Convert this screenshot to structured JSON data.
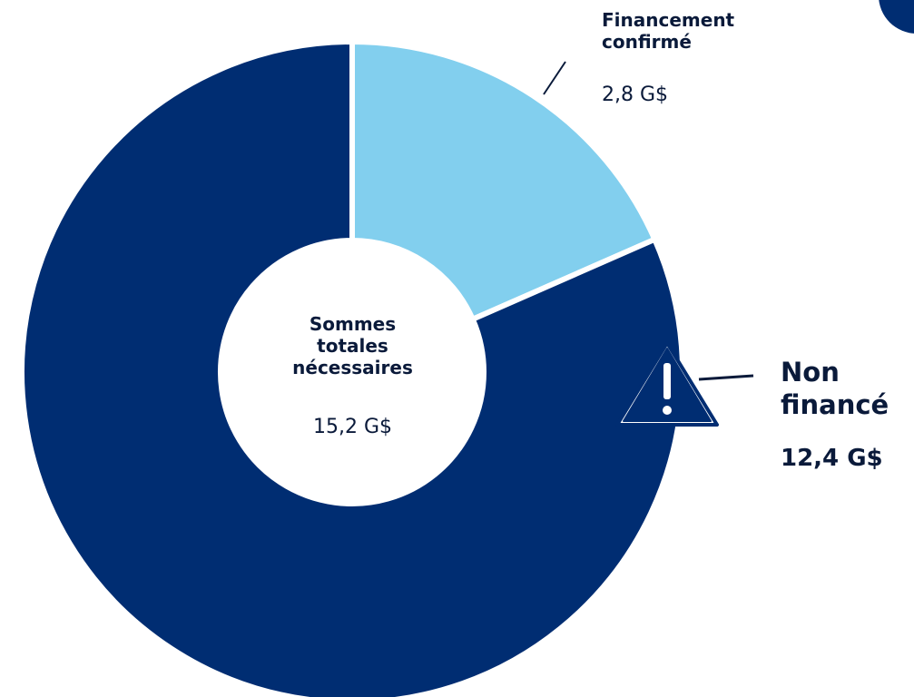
{
  "chart_data": {
    "type": "donut",
    "categories": [
      "Financement confirmé",
      "Non financé"
    ],
    "values": [
      2.8,
      12.4
    ],
    "value_labels": [
      "2,8 G$",
      "12,4 G$"
    ],
    "colors": [
      "#82cfee",
      "#002d72"
    ],
    "center_title": "Sommes totales nécessaires",
    "center_value": "15,2 G$"
  }
}
